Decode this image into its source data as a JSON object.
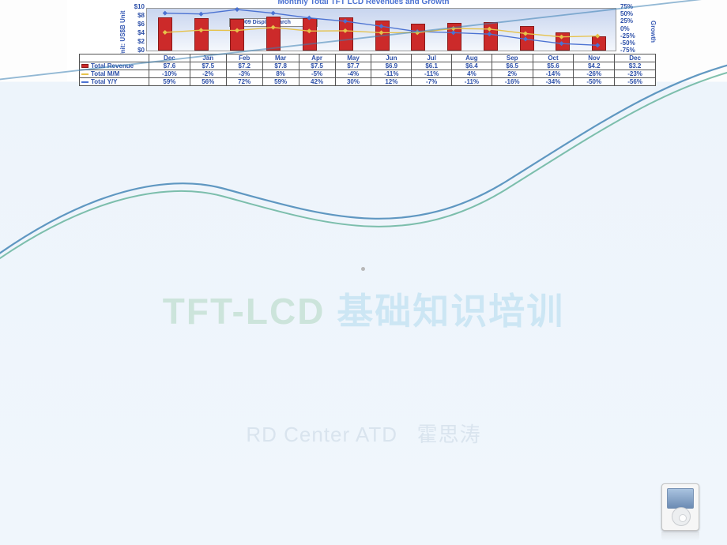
{
  "chart": {
    "title": "Monthly Total TFT LCD Revenues and Growth",
    "source_label": "© 2009 DisplaySearch",
    "y_left_label": "Unit: US$B  Unit",
    "y_right_label": "Growth",
    "y_left_ticks": [
      "$10",
      "$8",
      "$6",
      "$4",
      "$2",
      "$0"
    ],
    "y_left_max": 10,
    "y_right_ticks": [
      "75%",
      "50%",
      "25%",
      "0%",
      "-25%",
      "-50%",
      "-75%"
    ],
    "months": [
      "Dec",
      "Jan",
      "Feb",
      "Mar",
      "Apr",
      "May",
      "Jun",
      "Jul",
      "Aug",
      "Sep",
      "Oct",
      "Nov",
      "Dec"
    ],
    "series": {
      "revenue": {
        "label": "Total Revenue",
        "color": "#cc2a2a",
        "values": [
          7.6,
          7.5,
          7.2,
          7.8,
          7.5,
          7.7,
          6.9,
          6.1,
          6.4,
          6.5,
          5.6,
          4.2,
          3.2
        ]
      },
      "mm": {
        "label": "Total M/M",
        "color": "#e6c24a",
        "values": [
          -10,
          -2,
          -3,
          8,
          -5,
          -4,
          -11,
          -11,
          4,
          2,
          -14,
          -26,
          -23
        ]
      },
      "yy": {
        "label": "Total Y/Y",
        "color": "#4b72d2",
        "values": [
          59,
          56,
          72,
          59,
          42,
          30,
          12,
          -7,
          -11,
          -16,
          -34,
          -50,
          -56
        ]
      }
    }
  },
  "title": {
    "en": "TFT-LCD",
    "zh": "基础知识培训"
  },
  "subtitle_prefix": "RD Center ATD",
  "subtitle_name": "霍思涛"
}
